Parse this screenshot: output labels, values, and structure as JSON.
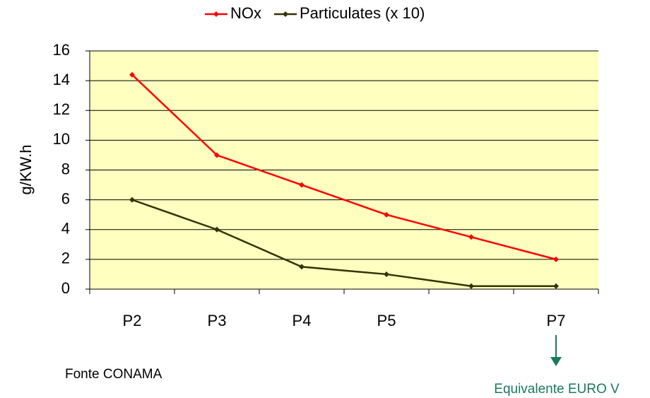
{
  "chart_data": {
    "type": "line",
    "y_label": "g/KW.h",
    "categories": [
      "P2",
      "P3",
      "P4",
      "P5",
      null,
      "P7"
    ],
    "series": [
      {
        "name": "NOx",
        "color": "#ff0000",
        "values": [
          14.4,
          9,
          7,
          5,
          3.5,
          2
        ]
      },
      {
        "name": "Particulates (x 10)",
        "color": "#333300",
        "values": [
          6,
          4,
          1.5,
          1,
          0.2,
          0.2
        ]
      }
    ],
    "ylim": [
      0,
      16
    ],
    "yticks": [
      0,
      2,
      4,
      6,
      8,
      10,
      12,
      14,
      16
    ],
    "grid": true,
    "legend": "top",
    "plot_background": "#ffffc0",
    "annotations": [
      {
        "text": "Fonte CONAMA"
      },
      {
        "text": "Equivalente EURO V",
        "color": "#1a7a5a"
      }
    ]
  }
}
